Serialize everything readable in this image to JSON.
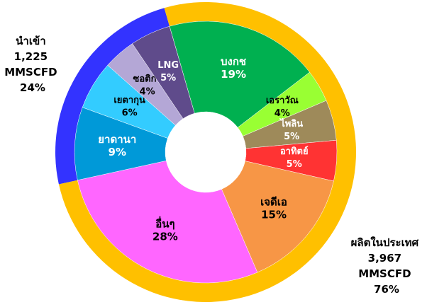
{
  "chart_data": {
    "type": "donut",
    "series": [
      {
        "categories": [
          "นำเข้า",
          "ผลิตในประเทศ"
        ],
        "values": [
          24,
          76
        ],
        "value_labels": [
          "24%",
          "76%"
        ],
        "volumes": [
          1225,
          3967
        ],
        "volume_labels": [
          "1,225",
          "3,967"
        ],
        "unit": "MMSCFD",
        "colors": [
          "#3333ff",
          "#ffc000"
        ]
      },
      {
        "categories": [
          "บงกช",
          "เอราวัณ",
          "ไพลิน",
          "อาทิตย์",
          "เจดีเอ",
          "อื่นๆ",
          "ยาดานา",
          "เยตากุน",
          "ซอติกา",
          "LNG"
        ],
        "values": [
          19,
          4,
          5,
          5,
          15,
          28,
          9,
          6,
          4,
          5
        ],
        "value_labels": [
          "19%",
          "4%",
          "5%",
          "5%",
          "15%",
          "28%",
          "9%",
          "6%",
          "4%",
          "5%"
        ],
        "colors": [
          "#00b050",
          "#99ff33",
          "#9e8a5a",
          "#ff3333",
          "#f79646",
          "#ff66ff",
          "#0099d8",
          "#33ccff",
          "#b4a7d6",
          "#5f4b8b"
        ]
      }
    ]
  }
}
